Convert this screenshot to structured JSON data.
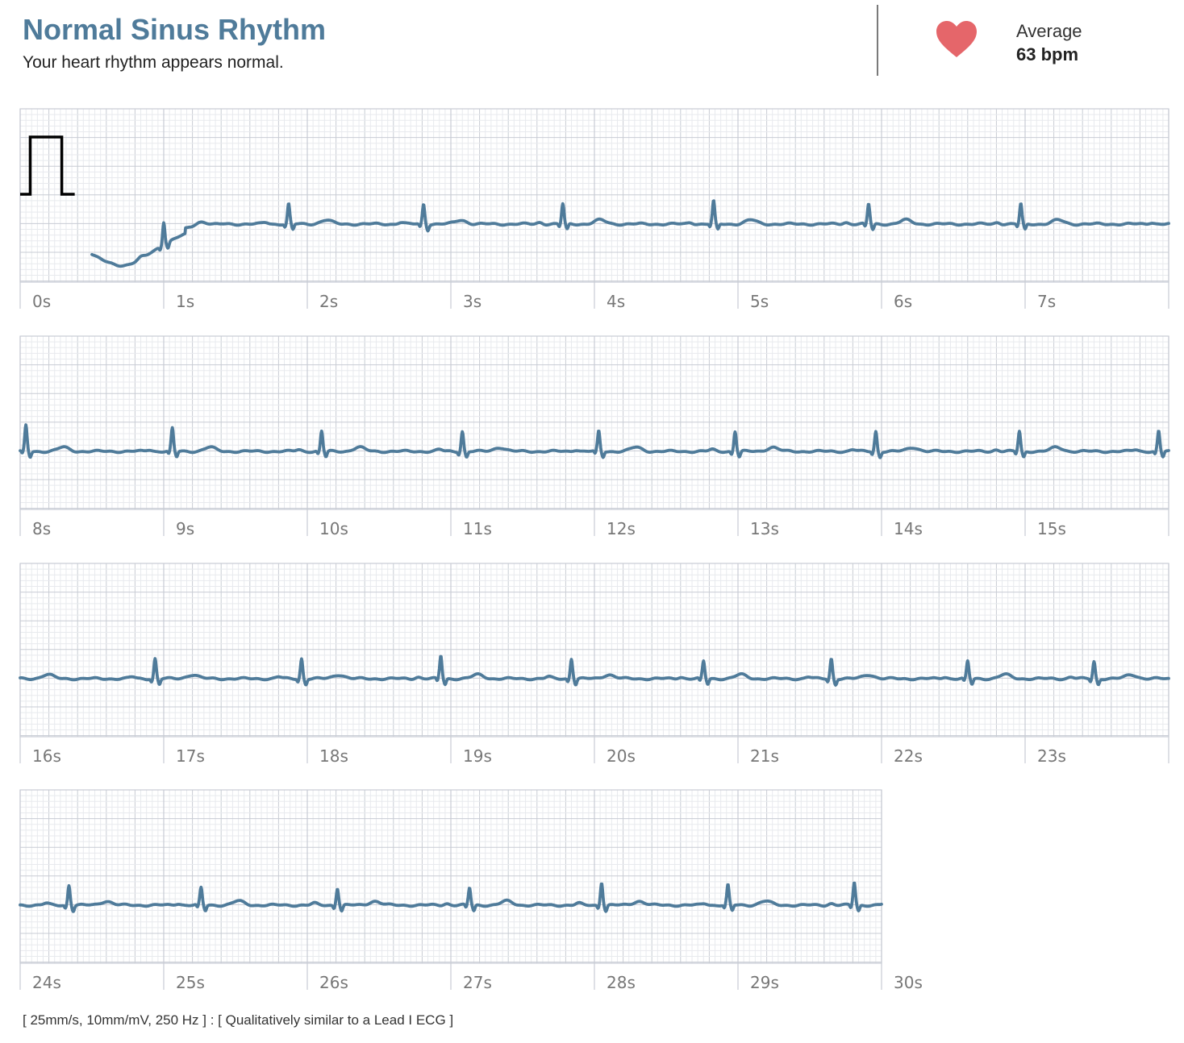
{
  "header": {
    "title": "Normal Sinus Rhythm",
    "subtitle": "Your heart rhythm appears normal.",
    "average_label": "Average",
    "average_value": "63 bpm",
    "heart_icon": "heart-icon",
    "heart_color": "#e5666a"
  },
  "footer": {
    "text": "[ 25mm/s, 10mm/mV, 250 Hz ] : [ Qualitatively similar to a Lead I ECG ]"
  },
  "colors": {
    "trace": "#4f7b9a",
    "grid_minor": "#e8eaee",
    "grid_major": "#c8ccd4",
    "label": "#777777",
    "calibration": "#000000"
  },
  "chart_data": {
    "type": "line",
    "title": "Normal Sinus Rhythm",
    "x_unit": "s",
    "duration_s": 30,
    "seconds_per_strip": 8,
    "paper_speed": "25mm/s",
    "gain": "10mm/mV",
    "sample_rate": "250 Hz",
    "average_bpm": 63,
    "strips": [
      {
        "xlim": [
          0,
          8
        ],
        "tick_labels": [
          "0s",
          "1s",
          "2s",
          "3s",
          "4s",
          "5s",
          "6s",
          "7s"
        ]
      },
      {
        "xlim": [
          8,
          16
        ],
        "tick_labels": [
          "8s",
          "9s",
          "10s",
          "11s",
          "12s",
          "13s",
          "14s",
          "15s"
        ]
      },
      {
        "xlim": [
          16,
          24
        ],
        "tick_labels": [
          "16s",
          "17s",
          "18s",
          "19s",
          "20s",
          "21s",
          "22s",
          "23s"
        ]
      },
      {
        "xlim": [
          24,
          30
        ],
        "tick_labels": [
          "24s",
          "25s",
          "26s",
          "27s",
          "28s",
          "29s",
          "30s"
        ]
      }
    ],
    "calibration_pulse": {
      "amplitude_mV": 1,
      "start_s": 0.0,
      "end_s": 0.38
    },
    "signal_start_s": 0.5,
    "r_peak_times_s": [
      1.0,
      1.87,
      2.81,
      3.78,
      4.83,
      5.91,
      6.97,
      8.04,
      9.06,
      10.1,
      11.08,
      12.03,
      12.98,
      13.96,
      14.96,
      15.93,
      16.94,
      17.96,
      18.93,
      19.84,
      20.76,
      21.65,
      22.6,
      23.48,
      24.34,
      25.26,
      26.21,
      27.13,
      28.05,
      28.93,
      29.81
    ],
    "r_peak_amplitude_mV": [
      0.4,
      0.35,
      0.35,
      0.35,
      0.4,
      0.35,
      0.35,
      0.45,
      0.4,
      0.35,
      0.35,
      0.35,
      0.35,
      0.35,
      0.35,
      0.35,
      0.35,
      0.35,
      0.4,
      0.35,
      0.3,
      0.35,
      0.3,
      0.3,
      0.35,
      0.3,
      0.3,
      0.3,
      0.4,
      0.35,
      0.4
    ]
  }
}
